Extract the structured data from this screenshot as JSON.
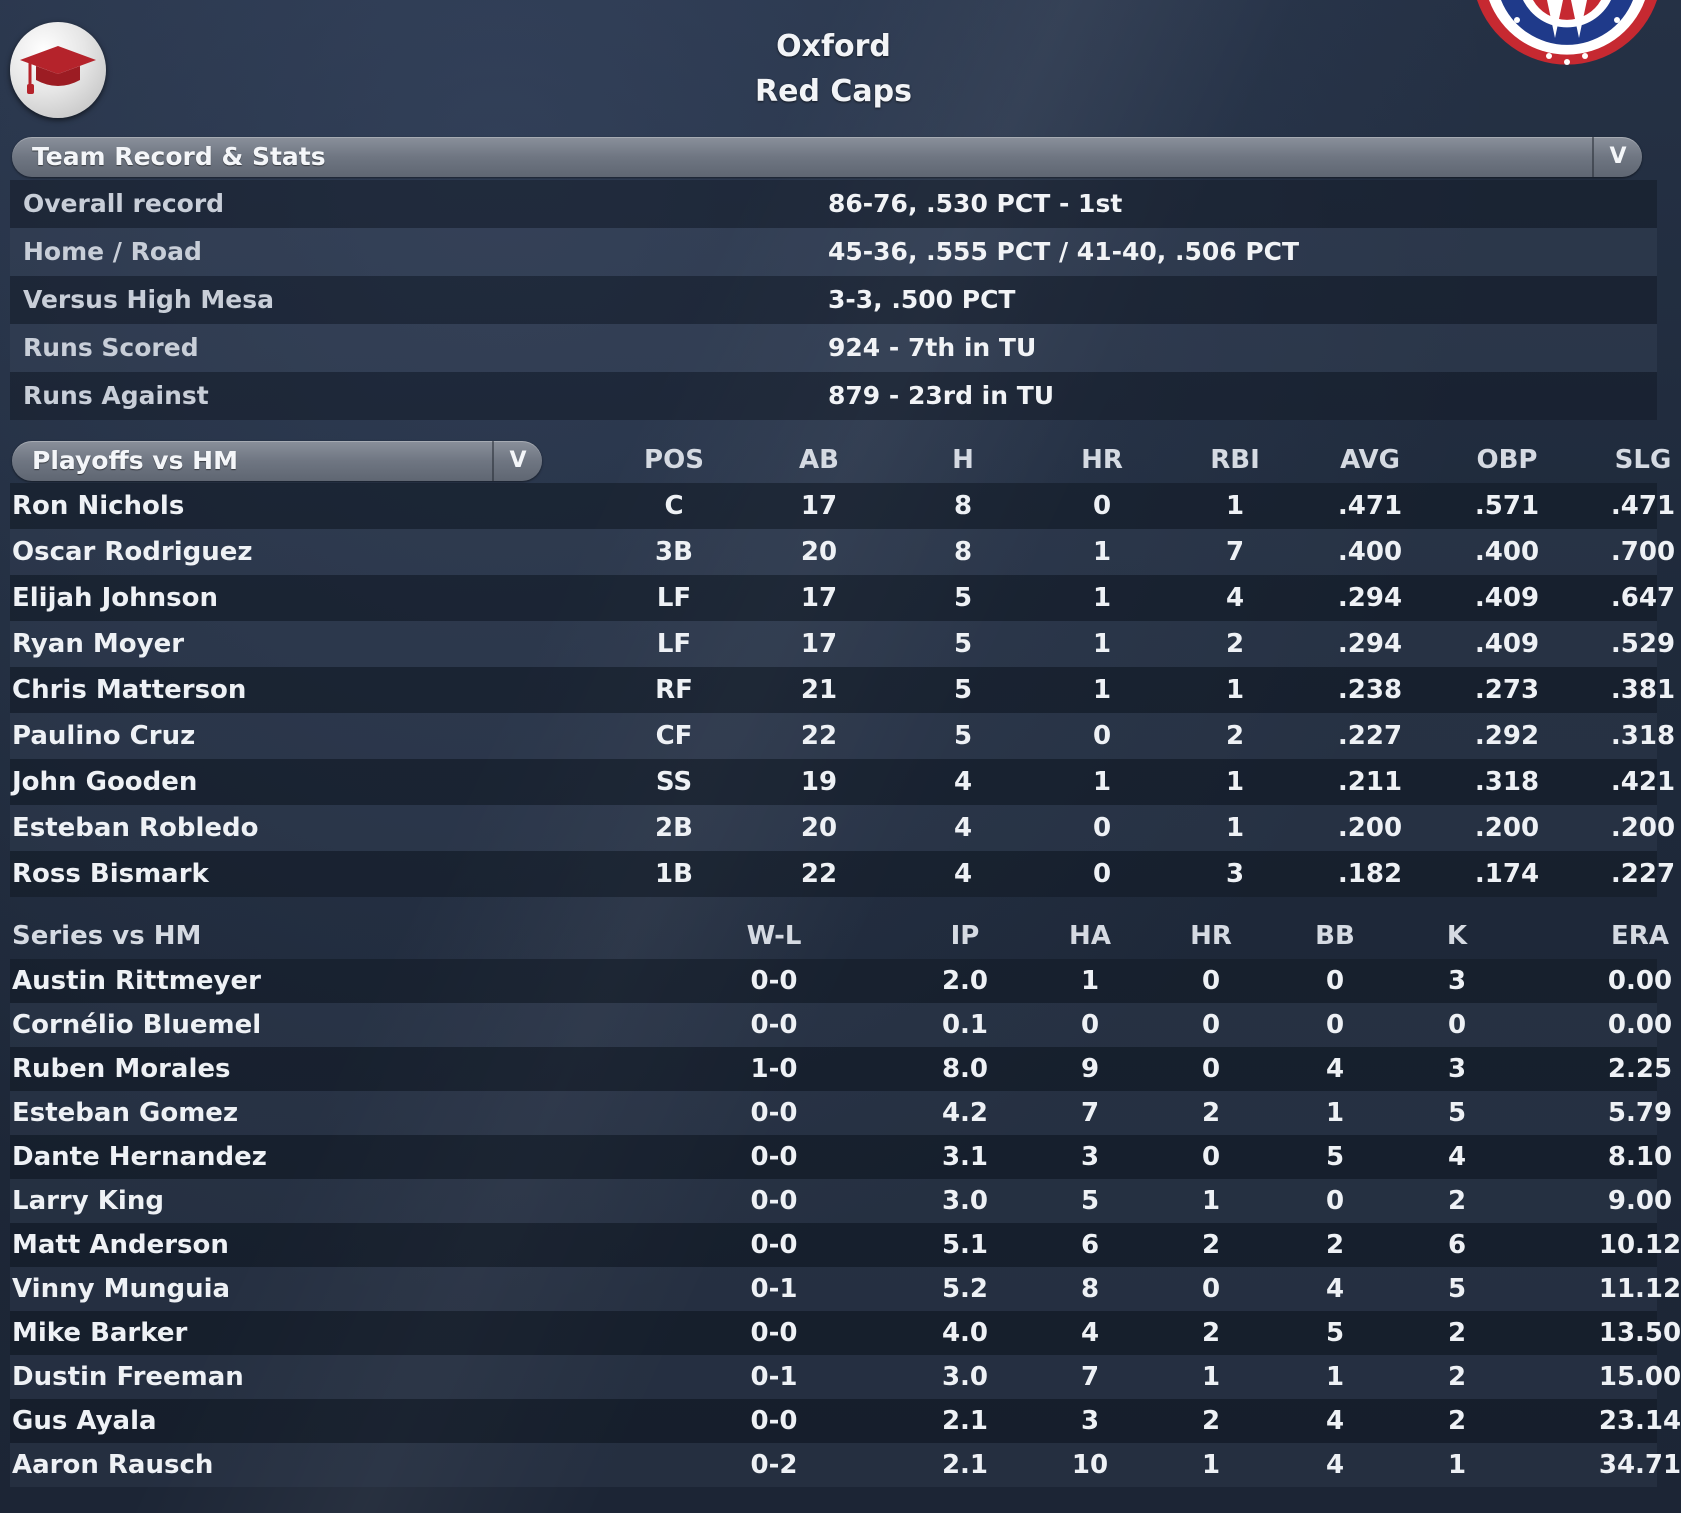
{
  "team": {
    "city": "Oxford",
    "name": "Red Caps"
  },
  "record_section": {
    "dropdown_label": "Team Record & Stats",
    "dropdown_arrow": "V",
    "rows": [
      {
        "label": "Overall record",
        "value": "86-76, .530 PCT - 1st"
      },
      {
        "label": "Home / Road",
        "value": "45-36, .555 PCT / 41-40, .506 PCT"
      },
      {
        "label": "Versus High Mesa",
        "value": "3-3, .500 PCT"
      },
      {
        "label": "Runs Scored",
        "value": "924 - 7th in TU"
      },
      {
        "label": "Runs Against",
        "value": "879 - 23rd in TU"
      }
    ]
  },
  "batting": {
    "dropdown_label": "Playoffs vs HM",
    "dropdown_arrow": "V",
    "columns": [
      "POS",
      "AB",
      "H",
      "HR",
      "RBI",
      "AVG",
      "OBP",
      "SLG"
    ],
    "rows": [
      {
        "name": "Ron Nichols",
        "values": [
          "C",
          "17",
          "8",
          "0",
          "1",
          ".471",
          ".571",
          ".471"
        ]
      },
      {
        "name": "Oscar Rodriguez",
        "values": [
          "3B",
          "20",
          "8",
          "1",
          "7",
          ".400",
          ".400",
          ".700"
        ]
      },
      {
        "name": "Elijah Johnson",
        "values": [
          "LF",
          "17",
          "5",
          "1",
          "4",
          ".294",
          ".409",
          ".647"
        ]
      },
      {
        "name": "Ryan Moyer",
        "values": [
          "LF",
          "17",
          "5",
          "1",
          "2",
          ".294",
          ".409",
          ".529"
        ]
      },
      {
        "name": "Chris Matterson",
        "values": [
          "RF",
          "21",
          "5",
          "1",
          "1",
          ".238",
          ".273",
          ".381"
        ]
      },
      {
        "name": "Paulino Cruz",
        "values": [
          "CF",
          "22",
          "5",
          "0",
          "2",
          ".227",
          ".292",
          ".318"
        ]
      },
      {
        "name": "John Gooden",
        "values": [
          "SS",
          "19",
          "4",
          "1",
          "1",
          ".211",
          ".318",
          ".421"
        ]
      },
      {
        "name": "Esteban Robledo",
        "values": [
          "2B",
          "20",
          "4",
          "0",
          "1",
          ".200",
          ".200",
          ".200"
        ]
      },
      {
        "name": "Ross Bismark",
        "values": [
          "1B",
          "22",
          "4",
          "0",
          "3",
          ".182",
          ".174",
          ".227"
        ]
      }
    ]
  },
  "pitching": {
    "title": "Series vs HM",
    "columns": [
      "W-L",
      "IP",
      "HA",
      "HR",
      "BB",
      "K",
      "ERA"
    ],
    "rows": [
      {
        "name": "Austin Rittmeyer",
        "values": [
          "0-0",
          "2.0",
          "1",
          "0",
          "0",
          "3",
          "0.00"
        ]
      },
      {
        "name": "Cornélio Bluemel",
        "values": [
          "0-0",
          "0.1",
          "0",
          "0",
          "0",
          "0",
          "0.00"
        ]
      },
      {
        "name": "Ruben Morales",
        "values": [
          "1-0",
          "8.0",
          "9",
          "0",
          "4",
          "3",
          "2.25"
        ]
      },
      {
        "name": "Esteban Gomez",
        "values": [
          "0-0",
          "4.2",
          "7",
          "2",
          "1",
          "5",
          "5.79"
        ]
      },
      {
        "name": "Dante Hernandez",
        "values": [
          "0-0",
          "3.1",
          "3",
          "0",
          "5",
          "4",
          "8.10"
        ]
      },
      {
        "name": "Larry King",
        "values": [
          "0-0",
          "3.0",
          "5",
          "1",
          "0",
          "2",
          "9.00"
        ]
      },
      {
        "name": "Matt Anderson",
        "values": [
          "0-0",
          "5.1",
          "6",
          "2",
          "2",
          "6",
          "10.12"
        ]
      },
      {
        "name": "Vinny Munguia",
        "values": [
          "0-1",
          "5.2",
          "8",
          "0",
          "4",
          "5",
          "11.12"
        ]
      },
      {
        "name": "Mike Barker",
        "values": [
          "0-0",
          "4.0",
          "4",
          "2",
          "5",
          "2",
          "13.50"
        ]
      },
      {
        "name": "Dustin Freeman",
        "values": [
          "0-1",
          "3.0",
          "7",
          "1",
          "1",
          "2",
          "15.00"
        ]
      },
      {
        "name": "Gus Ayala",
        "values": [
          "0-0",
          "2.1",
          "3",
          "2",
          "4",
          "2",
          "23.14"
        ]
      },
      {
        "name": "Aaron Rausch",
        "values": [
          "0-2",
          "2.1",
          "10",
          "1",
          "4",
          "1",
          "34.71"
        ]
      }
    ]
  },
  "icons": {
    "logo": "graduation-cap-icon",
    "decoration": "bunting-icon",
    "dropdown": "chevron-down-icon"
  },
  "colors": {
    "logo_cap": "#b5232b",
    "background": "#212c3e",
    "bunting_red": "#c62931",
    "bunting_blue": "#1f3a8a"
  }
}
